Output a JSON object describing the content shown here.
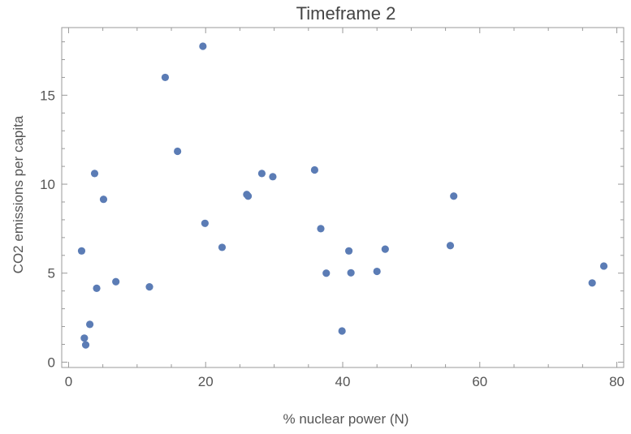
{
  "chart_data": {
    "type": "scatter",
    "title": "Timeframe 2",
    "xlabel": "% nuclear power (N)",
    "ylabel": "CO2 emissions per capita",
    "xlim": [
      -1,
      81
    ],
    "ylim": [
      -0.3,
      18.8
    ],
    "x_ticks": [
      0,
      20,
      40,
      60,
      80
    ],
    "y_ticks": [
      0,
      5,
      10,
      15
    ],
    "grid": false,
    "frame": "full box with ticks on all sides",
    "marker_color": "#5b7cb5",
    "points": [
      {
        "x": 1.9,
        "y": 6.25
      },
      {
        "x": 2.3,
        "y": 1.35
      },
      {
        "x": 2.5,
        "y": 0.97
      },
      {
        "x": 3.1,
        "y": 2.12
      },
      {
        "x": 3.8,
        "y": 10.6
      },
      {
        "x": 4.1,
        "y": 4.15
      },
      {
        "x": 5.1,
        "y": 9.15
      },
      {
        "x": 6.9,
        "y": 4.52
      },
      {
        "x": 11.8,
        "y": 4.23
      },
      {
        "x": 14.1,
        "y": 16.0
      },
      {
        "x": 15.9,
        "y": 11.85
      },
      {
        "x": 19.6,
        "y": 17.75
      },
      {
        "x": 19.9,
        "y": 7.8
      },
      {
        "x": 22.4,
        "y": 6.45
      },
      {
        "x": 26.0,
        "y": 9.42
      },
      {
        "x": 26.2,
        "y": 9.33
      },
      {
        "x": 28.2,
        "y": 10.6
      },
      {
        "x": 29.8,
        "y": 10.42
      },
      {
        "x": 35.9,
        "y": 10.8
      },
      {
        "x": 36.8,
        "y": 7.5
      },
      {
        "x": 37.6,
        "y": 5.0
      },
      {
        "x": 39.9,
        "y": 1.75
      },
      {
        "x": 40.9,
        "y": 6.25
      },
      {
        "x": 41.2,
        "y": 5.02
      },
      {
        "x": 45.0,
        "y": 5.1
      },
      {
        "x": 46.2,
        "y": 6.35
      },
      {
        "x": 55.7,
        "y": 6.55
      },
      {
        "x": 56.2,
        "y": 9.33
      },
      {
        "x": 76.4,
        "y": 4.45
      },
      {
        "x": 78.1,
        "y": 5.4
      }
    ]
  }
}
